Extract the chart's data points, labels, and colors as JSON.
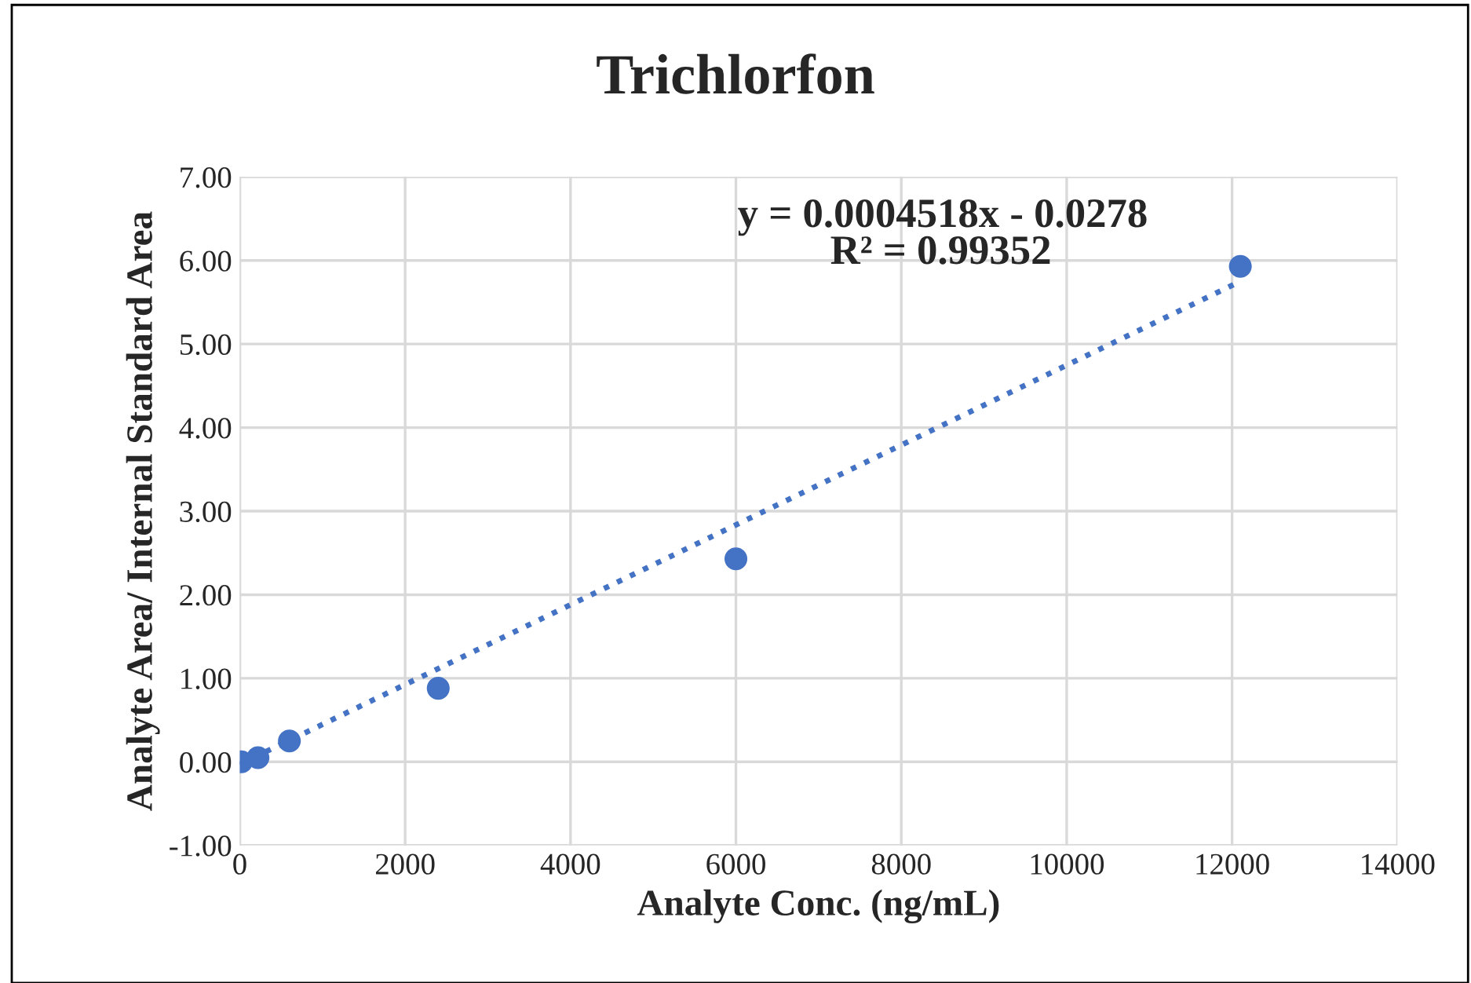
{
  "chart_data": {
    "type": "scatter",
    "title": "Trichlorfon",
    "xlabel": "Analyte Conc. (ng/mL)",
    "ylabel": "Analyte Area/ Internal Standard Area",
    "series": [
      {
        "color": "#4472c4",
        "marker": "circle",
        "x": [
          20,
          220,
          600,
          2400,
          6000,
          12100
        ],
        "values": [
          0.0,
          0.05,
          0.25,
          0.88,
          2.43,
          5.93
        ]
      },
      {
        "type": "line",
        "color": "#4472c4",
        "line_style": "dotted",
        "marker": "none",
        "x": [
          0,
          12100
        ],
        "values": [
          -0.03,
          5.75
        ]
      }
    ],
    "annotations": [
      "y = 0.0004518x - 0.0278",
      "R² = 0.99352"
    ],
    "xlim": [
      0,
      14000
    ],
    "xticks": [
      0,
      2000,
      4000,
      6000,
      8000,
      10000,
      12000,
      14000
    ],
    "ylim": [
      -1,
      7
    ],
    "yticks": [
      {
        "value": -1,
        "label": "-1.00"
      },
      {
        "value": 0,
        "label": "0.00"
      },
      {
        "value": 1,
        "label": "1.00"
      },
      {
        "value": 2,
        "label": "2.00"
      },
      {
        "value": 3,
        "label": "3.00"
      },
      {
        "value": 4,
        "label": "4.00"
      },
      {
        "value": 5,
        "label": "5.00"
      },
      {
        "value": 6,
        "label": "6.00"
      },
      {
        "value": 7,
        "label": "7.00"
      }
    ],
    "grid": true,
    "legend": false
  }
}
